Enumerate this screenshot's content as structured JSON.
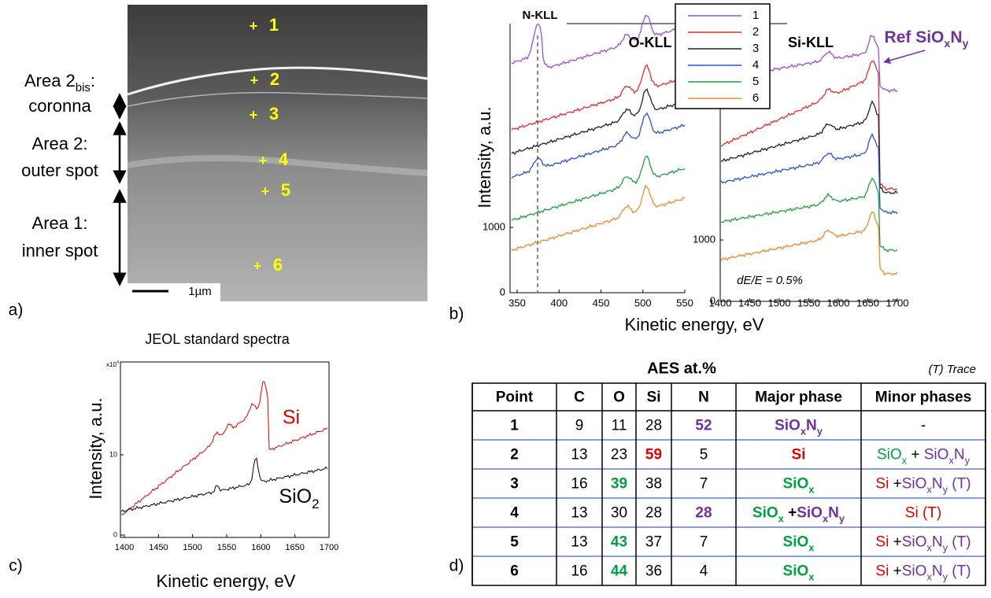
{
  "panel_a": {
    "label": "a)",
    "points": [
      "1",
      "2",
      "3",
      "4",
      "5",
      "6"
    ],
    "areas": [
      [
        [
          {
            "t": "Area 2"
          },
          {
            "t": "bis",
            "sub": true
          },
          {
            "t": ":"
          }
        ],
        [
          {
            "t": "coronna"
          }
        ]
      ],
      [
        [
          {
            "t": "Area 2:"
          }
        ],
        [
          {
            "t": "outer spot"
          }
        ]
      ],
      [
        [
          {
            "t": "Area 1:"
          }
        ],
        [
          {
            "t": "inner spot"
          }
        ]
      ]
    ],
    "scale_bar": "1µm",
    "point_color": "#ffff00"
  },
  "panel_b": {
    "label": "b)",
    "n_kll": "N-KLL",
    "o_kll": "O-KLL",
    "si_kll": "Si-KLL",
    "ref": [
      {
        "t": "Ref SiO",
        "color": "#7030a0"
      },
      {
        "t": "x",
        "color": "#7030a0",
        "sub": true
      },
      {
        "t": "N",
        "color": "#7030a0"
      },
      {
        "t": "y",
        "color": "#7030a0",
        "sub": true
      }
    ],
    "legend": [
      {
        "name": "1",
        "color": "#9b4fd8"
      },
      {
        "name": "2",
        "color": "#e03030"
      },
      {
        "name": "3",
        "color": "#222222"
      },
      {
        "name": "4",
        "color": "#3050d0"
      },
      {
        "name": "5",
        "color": "#20a040"
      },
      {
        "name": "6",
        "color": "#f08a30"
      }
    ],
    "ylabel": "Intensity, a.u.",
    "xlabel": "Kinetic energy, eV",
    "resolution": "dE/E = 0.5%",
    "left_xticks": [
      350,
      400,
      450,
      500,
      550
    ],
    "left_yticks": [
      0,
      1000
    ],
    "right_xticks": [
      1400,
      1450,
      1500,
      1550,
      1600,
      1650,
      1700
    ],
    "right_yticks": [
      0,
      1000
    ]
  },
  "panel_c": {
    "label": "c)",
    "title": "JEOL standard spectra",
    "ylabel": "Intensity, a.u.",
    "xlabel": "Kinetic energy, eV",
    "xticks": [
      1400,
      1450,
      1500,
      1550,
      1600,
      1650,
      1700
    ],
    "yticks": [
      0,
      10
    ],
    "yscale": [
      {
        "t": "x10"
      },
      {
        "t": "4",
        "sup": true
      }
    ],
    "si": {
      "t": "Si",
      "color": "#e00000"
    },
    "sio2": [
      {
        "t": "SiO"
      },
      {
        "t": "2",
        "sub": true
      }
    ]
  },
  "panel_d": {
    "label": "d)",
    "title": "AES at.%",
    "note": "(T) Trace",
    "header": [
      "Point",
      "C",
      "O",
      "Si",
      "N",
      "Major phase",
      "Minor phases"
    ],
    "rows": [
      [
        "1",
        9,
        11,
        28,
        {
          "value": 52,
          "color": "#7030a0"
        },
        [
          {
            "t": "SiO",
            "color": "#7030a0"
          },
          {
            "t": "x",
            "color": "#7030a0",
            "sub": true
          },
          {
            "t": "N",
            "color": "#7030a0"
          },
          {
            "t": "y",
            "color": "#7030a0",
            "sub": true
          }
        ],
        [
          {
            "t": "-"
          }
        ]
      ],
      [
        "2",
        13,
        23,
        {
          "value": 59,
          "color": "#e00000"
        },
        5,
        [
          {
            "t": "Si",
            "color": "#e00000"
          }
        ],
        [
          {
            "t": "SiO",
            "color": "#00a040"
          },
          {
            "t": "x",
            "color": "#00a040",
            "sub": true
          },
          {
            "t": " + "
          },
          {
            "t": "SiO",
            "color": "#7030a0"
          },
          {
            "t": "x",
            "color": "#7030a0",
            "sub": true
          },
          {
            "t": "N",
            "color": "#7030a0"
          },
          {
            "t": "y",
            "color": "#7030a0",
            "sub": true
          }
        ]
      ],
      [
        "3",
        16,
        {
          "value": 39,
          "color": "#00a040"
        },
        38,
        7,
        [
          {
            "t": "SiO",
            "color": "#00a040"
          },
          {
            "t": "x",
            "color": "#00a040",
            "sub": true
          }
        ],
        [
          {
            "t": "Si",
            "color": "#e00000"
          },
          {
            "t": " +"
          },
          {
            "t": "SiO",
            "color": "#7030a0"
          },
          {
            "t": "x",
            "color": "#7030a0",
            "sub": true
          },
          {
            "t": "N",
            "color": "#7030a0"
          },
          {
            "t": "y",
            "color": "#7030a0",
            "sub": true
          },
          {
            "t": " (T)",
            "color": "#7030a0"
          }
        ]
      ],
      [
        "4",
        13,
        30,
        28,
        {
          "value": 28,
          "color": "#7030a0"
        },
        [
          {
            "t": "SiO",
            "color": "#00a040"
          },
          {
            "t": "x",
            "color": "#00a040",
            "sub": true
          },
          {
            "t": " +"
          },
          {
            "t": "SiO",
            "color": "#7030a0"
          },
          {
            "t": "x",
            "color": "#7030a0",
            "sub": true
          },
          {
            "t": "N",
            "color": "#7030a0"
          },
          {
            "t": "y",
            "color": "#7030a0",
            "sub": true
          }
        ],
        [
          {
            "t": "Si (T)",
            "color": "#e00000"
          }
        ]
      ],
      [
        "5",
        13,
        {
          "value": 43,
          "color": "#00a040"
        },
        37,
        7,
        [
          {
            "t": "SiO",
            "color": "#00a040"
          },
          {
            "t": "x",
            "color": "#00a040",
            "sub": true
          }
        ],
        [
          {
            "t": "Si",
            "color": "#e00000"
          },
          {
            "t": " +"
          },
          {
            "t": "SiO",
            "color": "#7030a0"
          },
          {
            "t": "x",
            "color": "#7030a0",
            "sub": true
          },
          {
            "t": "N",
            "color": "#7030a0"
          },
          {
            "t": "y",
            "color": "#7030a0",
            "sub": true
          },
          {
            "t": " (T)",
            "color": "#7030a0"
          }
        ]
      ],
      [
        "6",
        16,
        {
          "value": 44,
          "color": "#00a040"
        },
        36,
        4,
        [
          {
            "t": "SiO",
            "color": "#00a040"
          },
          {
            "t": "x",
            "color": "#00a040",
            "sub": true
          }
        ],
        [
          {
            "t": "Si",
            "color": "#e00000"
          },
          {
            "t": " +"
          },
          {
            "t": "SiO",
            "color": "#7030a0"
          },
          {
            "t": "x",
            "color": "#7030a0",
            "sub": true
          },
          {
            "t": "N",
            "color": "#7030a0"
          },
          {
            "t": "y",
            "color": "#7030a0",
            "sub": true
          },
          {
            "t": " (T)",
            "color": "#7030a0"
          }
        ]
      ]
    ]
  }
}
